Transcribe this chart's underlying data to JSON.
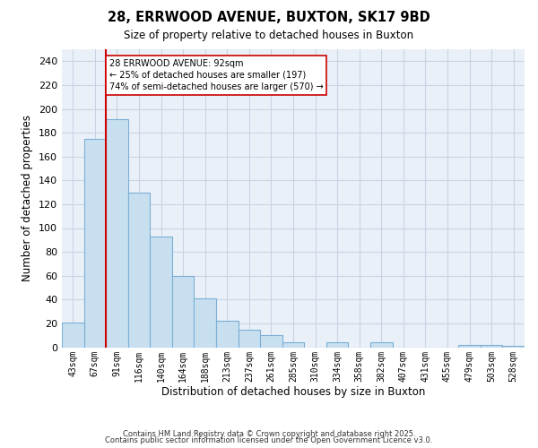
{
  "title": "28, ERRWOOD AVENUE, BUXTON, SK17 9BD",
  "subtitle": "Size of property relative to detached houses in Buxton",
  "xlabel": "Distribution of detached houses by size in Buxton",
  "ylabel": "Number of detached properties",
  "bar_color": "#c8dff0",
  "bar_edge_color": "#7aafd4",
  "categories": [
    "43sqm",
    "67sqm",
    "91sqm",
    "116sqm",
    "140sqm",
    "164sqm",
    "188sqm",
    "213sqm",
    "237sqm",
    "261sqm",
    "285sqm",
    "310sqm",
    "334sqm",
    "358sqm",
    "382sqm",
    "407sqm",
    "431sqm",
    "455sqm",
    "479sqm",
    "503sqm",
    "528sqm"
  ],
  "values": [
    21,
    175,
    191,
    130,
    93,
    60,
    41,
    22,
    15,
    10,
    4,
    0,
    4,
    0,
    4,
    0,
    0,
    0,
    2,
    2,
    1
  ],
  "ylim": [
    0,
    250
  ],
  "yticks": [
    0,
    20,
    40,
    60,
    80,
    100,
    120,
    140,
    160,
    180,
    200,
    220,
    240
  ],
  "property_line_bin": 2,
  "property_line_color": "#cc0000",
  "annotation_title": "28 ERRWOOD AVENUE: 92sqm",
  "annotation_line1": "← 25% of detached houses are smaller (197)",
  "annotation_line2": "74% of semi-detached houses are larger (570) →",
  "annotation_box_color": "#ffffff",
  "annotation_box_edge": "#cc0000",
  "footnote1": "Contains HM Land Registry data © Crown copyright and database right 2025.",
  "footnote2": "Contains public sector information licensed under the Open Government Licence v3.0.",
  "background_color": "#ffffff",
  "plot_bg_color": "#eaf0f8",
  "grid_color": "#c8d4e4"
}
